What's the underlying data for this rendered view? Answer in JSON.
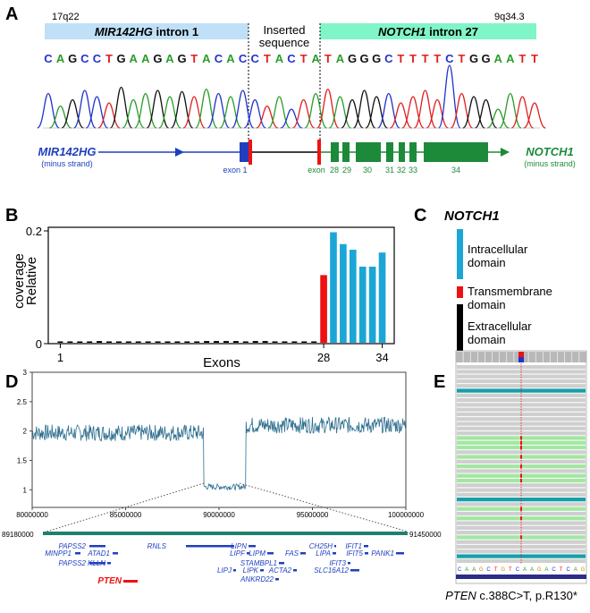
{
  "panels": {
    "A": {
      "letter": "A",
      "loc_left": "17q22",
      "loc_right": "9q34.3",
      "box_left": {
        "gene": "MIR142HG",
        "rest": " intron 1",
        "color": "#bfe0f7"
      },
      "box_mid": {
        "line1": "Inserted",
        "line2": "sequence"
      },
      "box_right": {
        "gene": "NOTCH1",
        "rest": " intron 27",
        "color": "#7ff5c8"
      },
      "sequence": [
        "C",
        "A",
        "G",
        "C",
        "C",
        "T",
        "G",
        "A",
        "A",
        "G",
        "A",
        "G",
        "T",
        "A",
        "C",
        "A",
        "C",
        "C",
        "T",
        "A",
        "C",
        "T",
        "A",
        "T",
        "A",
        "G",
        "G",
        "G",
        "C",
        "T",
        "T",
        "T",
        "T",
        "C",
        "T",
        "G",
        "G",
        "A",
        "A",
        "T",
        "T"
      ],
      "base_colors": {
        "A": "#2a9d2a",
        "C": "#2233cc",
        "G": "#111111",
        "T": "#e02020"
      },
      "left_gene": {
        "name": "MIR142HG",
        "strand": "(minus strand)",
        "color": "#1f3fbf"
      },
      "right_gene": {
        "name": "NOTCH1",
        "strand": "(minus strand)",
        "color": "#1d8a3a"
      },
      "exon_labels": {
        "left": "exon 1",
        "mid": "exon",
        "numbers": [
          "28",
          "29",
          "30",
          "31",
          "32",
          "33",
          "34"
        ]
      }
    },
    "B": {
      "letter": "B",
      "ylabel_line1": "Relative",
      "ylabel_line2": "coverage",
      "xlabel": "Exons",
      "xticks": [
        "1",
        "28",
        "34"
      ]
    },
    "C": {
      "letter": "C",
      "title": "NOTCH1",
      "legend": [
        {
          "label1": "Intracellular",
          "label2": "domain",
          "color": "#1ba6d6"
        },
        {
          "label1": "Transmembrane",
          "label2": "domain",
          "color": "#ee1111"
        },
        {
          "label1": "Extracellular",
          "label2": "domain",
          "color": "#000000"
        }
      ]
    },
    "D": {
      "letter": "D",
      "yticks": [
        "1",
        "1.5",
        "2",
        "2.5",
        "3"
      ],
      "xticks": [
        "80000000",
        "85000000",
        "90000000",
        "95000000",
        "100000000"
      ],
      "region_start": "89180000",
      "region_end": "91450000",
      "genes": [
        "PAPSS2",
        "MINPP1",
        "ATAD1",
        "PAPSS2",
        "KLLN",
        "RNLS",
        "LIPN",
        "LIPF",
        "LIPM",
        "STAMBPL1",
        "FAS",
        "LIPJ",
        "LIPK",
        "ACTA2",
        "ANKRD22",
        "CH25H",
        "LIPA",
        "IFIT3",
        "IFIT1",
        "IFIT5",
        "PANK1",
        "SLC16A12",
        "PTEN"
      ],
      "highlight_gene": "PTEN"
    },
    "E": {
      "letter": "E",
      "caption_gene": "PTEN",
      "caption_rest": " c.388C>T, p.R130*",
      "ref_bases": [
        "C",
        "A",
        "A",
        "G",
        "C",
        "T",
        "G",
        "T",
        "C",
        "A",
        "A",
        "G",
        "A",
        "C",
        "T",
        "C",
        "A",
        "G"
      ]
    }
  },
  "chart_data": [
    {
      "type": "bar",
      "panel": "B",
      "ylabel": "Relative coverage",
      "xlabel": "Exons",
      "ylim": [
        0,
        0.2
      ],
      "categories": [
        "1",
        "2",
        "3",
        "4",
        "5",
        "6",
        "7",
        "8",
        "9",
        "10",
        "11",
        "12",
        "13",
        "14",
        "15",
        "16",
        "17",
        "18",
        "19",
        "20",
        "21",
        "22",
        "23",
        "24",
        "25",
        "26",
        "27",
        "28",
        "29",
        "30",
        "31",
        "32",
        "33",
        "34"
      ],
      "values": [
        0.002,
        0.002,
        0.002,
        0.002,
        0.003,
        0.002,
        0.002,
        0.002,
        0.002,
        0.002,
        0.002,
        0.002,
        0.002,
        0.002,
        0.002,
        0.003,
        0.003,
        0.003,
        0.003,
        0.002,
        0.003,
        0.003,
        0.002,
        0.002,
        0.002,
        0.002,
        0.002,
        0.12,
        0.196,
        0.175,
        0.165,
        0.135,
        0.135,
        0.16
      ],
      "domain": [
        "E",
        "E",
        "E",
        "E",
        "E",
        "E",
        "E",
        "E",
        "E",
        "E",
        "E",
        "E",
        "E",
        "E",
        "E",
        "E",
        "E",
        "E",
        "E",
        "E",
        "E",
        "E",
        "E",
        "E",
        "E",
        "E",
        "E",
        "T",
        "I",
        "I",
        "I",
        "I",
        "I",
        "I"
      ],
      "domain_colors": {
        "E": "#000000",
        "T": "#ee1111",
        "I": "#1ba6d6"
      }
    },
    {
      "type": "line",
      "panel": "D",
      "ylim": [
        0.7,
        3.0
      ],
      "xlim": [
        80000000,
        100000000
      ],
      "segments": [
        {
          "x": [
            80000000,
            89180000
          ],
          "level": 1.97
        },
        {
          "x": [
            89180000,
            91450000
          ],
          "level": 1.05
        },
        {
          "x": [
            91450000,
            100000000
          ],
          "level": 2.1
        }
      ]
    }
  ]
}
